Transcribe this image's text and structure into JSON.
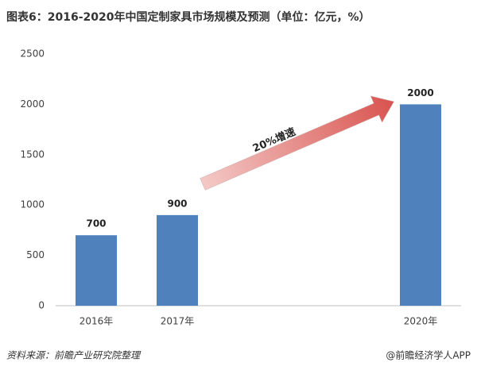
{
  "chart_data": {
    "type": "bar",
    "title": "图表6：2016-2020年中国定制家具市场规模及预测（单位：亿元，%）",
    "categories": [
      "2016年",
      "2017年",
      null,
      null,
      "2020年"
    ],
    "values": [
      700,
      900,
      null,
      null,
      2000
    ],
    "color": "#4f81bd",
    "ylim": [
      0,
      2500
    ],
    "yticks": [
      0,
      500,
      1000,
      1500,
      2000,
      2500
    ],
    "grid": false,
    "annotation": "20%增速",
    "source": "资料来源：前瞻产业研究院整理",
    "credit": "@前瞻经济学人APP"
  }
}
